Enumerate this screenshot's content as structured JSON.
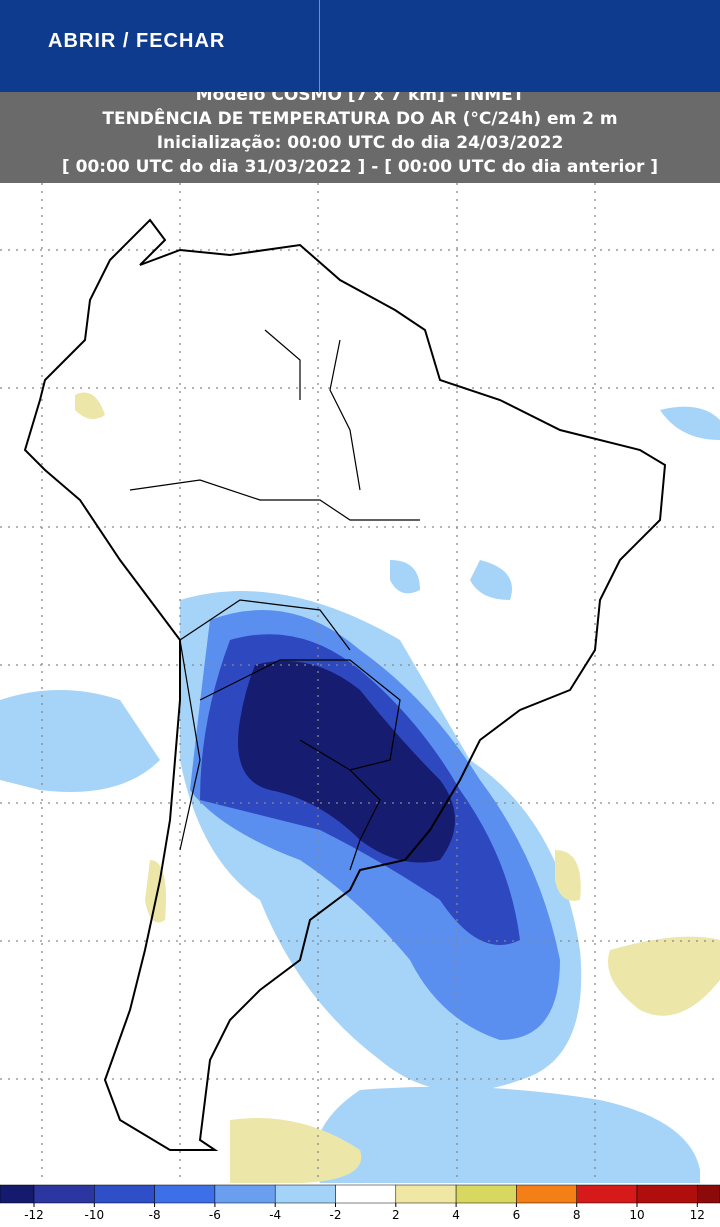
{
  "button": {
    "label": "ABRIR / FECHAR"
  },
  "header": {
    "lines": [
      "Modelo COSMO [7 x 7 km] - INMET",
      "TENDÊNCIA DE TEMPERATURA DO AR (°C/24h) em 2 m",
      "Inicialização: 00:00 UTC do dia 24/03/2022",
      "[ 00:00 UTC do dia 31/03/2022 ] - [ 00:00 UTC do dia anterior ]"
    ]
  },
  "colorbar": {
    "labels": [
      -12,
      -10,
      -8,
      -6,
      -4,
      -2,
      2,
      4,
      6,
      8,
      10,
      12
    ],
    "colors": [
      "#141a6e",
      "#2c36a0",
      "#2e4fc8",
      "#3d6fe8",
      "#6a9ff0",
      "#a3d3f8",
      "#ffffff",
      "#efe7a3",
      "#d8d860",
      "#f57f17",
      "#d61a1a",
      "#b00d0d",
      "#8c0a0a"
    ]
  }
}
